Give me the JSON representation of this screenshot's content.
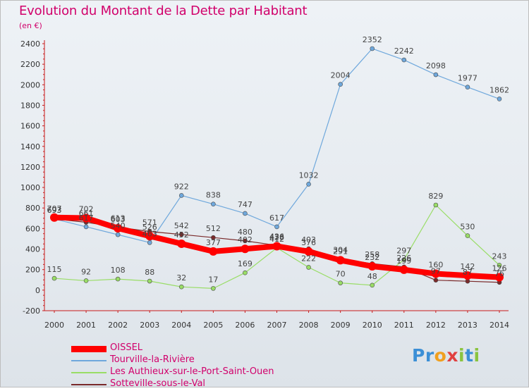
{
  "header": {
    "title": "Evolution du Montant de la Dette par Habitant",
    "unit": "(en €)"
  },
  "brand": {
    "letters": [
      {
        "char": "P",
        "color": "#3b8fd6"
      },
      {
        "char": "r",
        "color": "#3b8fd6"
      },
      {
        "char": "o",
        "color": "#f0a020"
      },
      {
        "char": "x",
        "color": "#e04040"
      },
      {
        "char": "i",
        "color": "#8ac43f"
      },
      {
        "char": "t",
        "color": "#3b8fd6"
      },
      {
        "char": "i",
        "color": "#8ac43f"
      }
    ]
  },
  "chart_data": {
    "type": "line",
    "title": "Evolution du Montant de la Dette par Habitant",
    "ylabel": "(en €)",
    "xlabel": "",
    "categories": [
      "2000",
      "2001",
      "2002",
      "2003",
      "2004",
      "2005",
      "2006",
      "2007",
      "2008",
      "2009",
      "2010",
      "2011",
      "2012",
      "2013",
      "2014"
    ],
    "ylim": [
      -200,
      2400
    ],
    "yticks": [
      -200,
      0,
      200,
      400,
      600,
      800,
      1000,
      1200,
      1400,
      1600,
      1800,
      2000,
      2200,
      2400
    ],
    "grid": false,
    "legend_position": "bottom-left",
    "series": [
      {
        "name": "OISSEL",
        "color": "#ff0000",
        "values": [
          707,
          702,
          603,
          526,
          452,
          377,
          402,
          428,
          376,
          291,
          232,
          199,
          160,
          142,
          126
        ]
      },
      {
        "name": "Tourville-la-Rivière",
        "color": "#6fa8dc",
        "values": [
          693,
          617,
          540,
          463,
          922,
          838,
          747,
          617,
          1032,
          2004,
          2352,
          2242,
          2098,
          1977,
          1862
        ]
      },
      {
        "name": "Les Authieux-sur-le-Port-Saint-Ouen",
        "color": "#99dd66",
        "values": [
          115,
          92,
          108,
          88,
          32,
          17,
          169,
          412,
          222,
          70,
          48,
          297,
          829,
          530,
          243
        ]
      },
      {
        "name": "Sotteville-sous-le-Val",
        "color": "#7a2a2a",
        "values": [
          693,
          661,
          613,
          571,
          542,
          512,
          480,
          436,
          403,
          304,
          258,
          226,
          97,
          87,
          76
        ]
      }
    ]
  }
}
